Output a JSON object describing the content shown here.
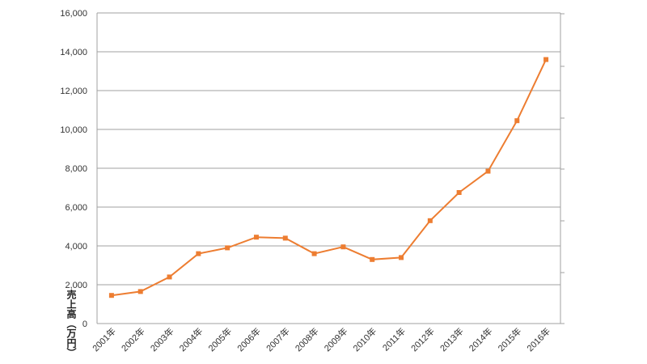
{
  "chart_data": {
    "type": "line",
    "y_axis_label": "売上高（万円）",
    "categories": [
      "2001年",
      "2002年",
      "2003年",
      "2004年",
      "2005年",
      "2006年",
      "2007年",
      "2008年",
      "2009年",
      "2010年",
      "2011年",
      "2012年",
      "2013年",
      "2014年",
      "2015年",
      "2016年"
    ],
    "series": [
      {
        "color": "#ed7d31",
        "values": [
          1450,
          1650,
          2400,
          3600,
          3900,
          4450,
          4400,
          3600,
          3950,
          3300,
          3400,
          5300,
          6750,
          7850,
          10450,
          13600
        ]
      }
    ],
    "ylim": [
      0,
      16000
    ],
    "yticks": [
      0,
      {
        "value": 2000,
        "label": "2,000"
      },
      {
        "value": 4000,
        "label": "4,000"
      },
      {
        "value": 6000,
        "label": "6,000"
      },
      {
        "value": 8000,
        "label": "8,000"
      },
      {
        "value": 10000,
        "label": "10,000"
      },
      {
        "value": 12000,
        "label": "12,000"
      },
      {
        "value": 14000,
        "label": "14,000"
      },
      {
        "value": 16000,
        "label": "16,000"
      }
    ],
    "grid": true
  }
}
